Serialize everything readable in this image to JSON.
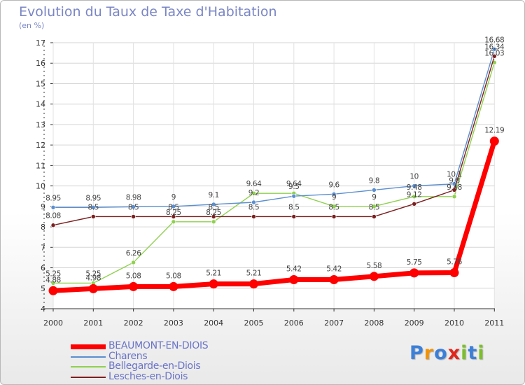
{
  "chart_data": {
    "type": "line",
    "title": "Evolution du Taux de Taxe d'Habitation",
    "subtitle": "(en %)",
    "categories": [
      "2000",
      "2001",
      "2002",
      "2003",
      "2004",
      "2005",
      "2006",
      "2007",
      "2008",
      "2009",
      "2010",
      "2011"
    ],
    "ylim": [
      4,
      17
    ],
    "yticks": [
      "4",
      "5",
      "6",
      "7",
      "8",
      "9",
      "10",
      "11",
      "12",
      "13",
      "14",
      "15",
      "16",
      "17"
    ],
    "grid": true,
    "legend_position": "bottom-left",
    "series": [
      {
        "name": "BEAUMONT-EN-DIOIS",
        "color": "#ff0000",
        "values": [
          4.88,
          4.98,
          5.08,
          5.08,
          5.21,
          5.21,
          5.42,
          5.42,
          5.58,
          5.75,
          5.76,
          12.19
        ],
        "labels": [
          "4.88",
          "4.98",
          "5.08",
          "5.08",
          "5.21",
          "5.21",
          "5.42",
          "5.42",
          "5.58",
          "5.75",
          "5.76",
          "12.19"
        ]
      },
      {
        "name": "Charens",
        "color": "#5b8fd0",
        "values": [
          8.95,
          8.95,
          8.98,
          9,
          9.1,
          9.2,
          9.5,
          9.6,
          9.8,
          10,
          10.1,
          16.68
        ],
        "labels": [
          "8.95",
          "8.95",
          "8.98",
          "9",
          "9.1",
          "9.2",
          "9.5",
          "9.6",
          "9.8",
          "10",
          "10.1",
          "16.68"
        ]
      },
      {
        "name": "Bellegarde-en-Diois",
        "color": "#8fd14f",
        "values": [
          5.25,
          5.25,
          6.26,
          8.25,
          8.25,
          9.64,
          9.64,
          9,
          9,
          9.48,
          9.48,
          16.03
        ],
        "labels": [
          "5.25",
          "5.25",
          "6.26",
          "8.25",
          "8.25",
          "9.64",
          "9.64",
          "9",
          "9",
          "9.48",
          "9.48",
          "16.03"
        ]
      },
      {
        "name": "Lesches-en-Diois",
        "color": "#7b1f1f",
        "values": [
          8.08,
          8.5,
          8.5,
          8.5,
          8.5,
          8.5,
          8.5,
          8.5,
          8.5,
          9.12,
          9.8,
          16.34
        ],
        "labels": [
          "8.08",
          "8.5",
          "8.5",
          "8.5",
          "8.5",
          "8.5",
          "8.5",
          "8.5",
          "8.5",
          "9.12",
          "9.8",
          "16.34"
        ]
      }
    ]
  },
  "logo": {
    "text": "Proxiti",
    "letters": [
      "P",
      "r",
      "o",
      "x",
      "i",
      "t",
      "i"
    ],
    "colors": [
      "#3b7fd8",
      "#f39200",
      "#3b7fd8",
      "#e1261c",
      "#7cbf2a",
      "#3b7fd8",
      "#7cbf2a"
    ]
  }
}
